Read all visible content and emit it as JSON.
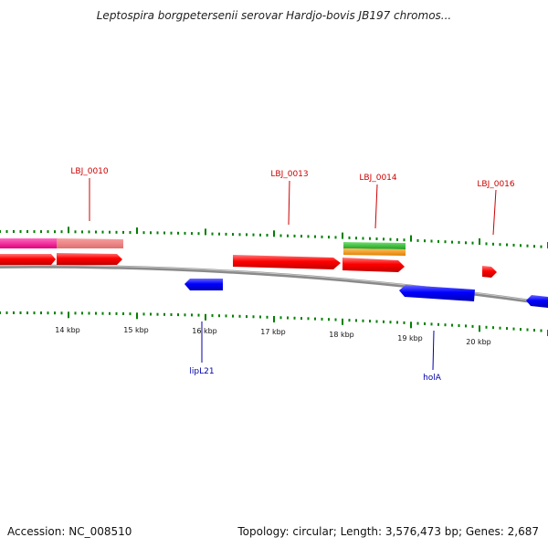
{
  "title": "Leptospira borgpetersenii serovar Hardjo-bovis JB197 chromos...",
  "footer": {
    "accession": "Accession: NC_008510",
    "summary": "Topology: circular; Length: 3,576,473 bp; Genes: 2,687"
  },
  "colors": {
    "forward": "#ff0000",
    "reverse": "#0000ff",
    "tick": "#008000",
    "backbone": "#8a8a8a",
    "label_forward": "#cc0000",
    "label_reverse": "#0000aa"
  },
  "scale_labels": [
    "14 kbp",
    "15 kbp",
    "16 kbp",
    "17 kbp",
    "18 kbp",
    "19 kbp",
    "20 kbp"
  ],
  "gene_labels": [
    {
      "text": "LBJ_0010",
      "strand": "forward"
    },
    {
      "text": "LBJ_0013",
      "strand": "forward"
    },
    {
      "text": "LBJ_0014",
      "strand": "forward"
    },
    {
      "text": "LBJ_0016",
      "strand": "forward"
    },
    {
      "text": "lipL21",
      "strand": "reverse"
    },
    {
      "text": "holA",
      "strand": "reverse"
    }
  ]
}
